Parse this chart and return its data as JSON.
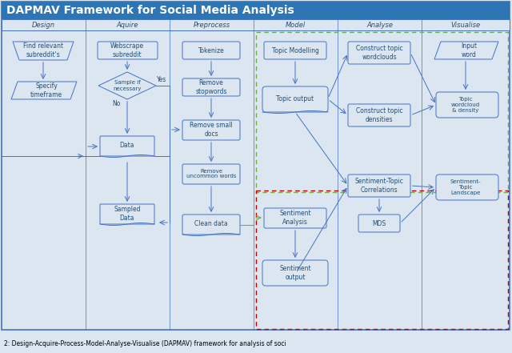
{
  "title": "DAPMAV Framework for Social Media Analysis",
  "columns": [
    "Design",
    "Aquire",
    "Preprocess",
    "Model",
    "Analyse",
    "Visualise"
  ],
  "bg_color": "#dce6f1",
  "box_fc": "#dce6f1",
  "box_ec": "#4472c4",
  "title_fc": "#2e75b6",
  "header_fc": "#4472c4",
  "arr_c": "#4472c4",
  "green_dash": "#70ad47",
  "red_dash": "#c00000",
  "text_c": "#1f4e79",
  "caption": "2: Design-Acquire-Process-Model-Analyse-Visualise (DAPMAV) framework for analysis of soci"
}
